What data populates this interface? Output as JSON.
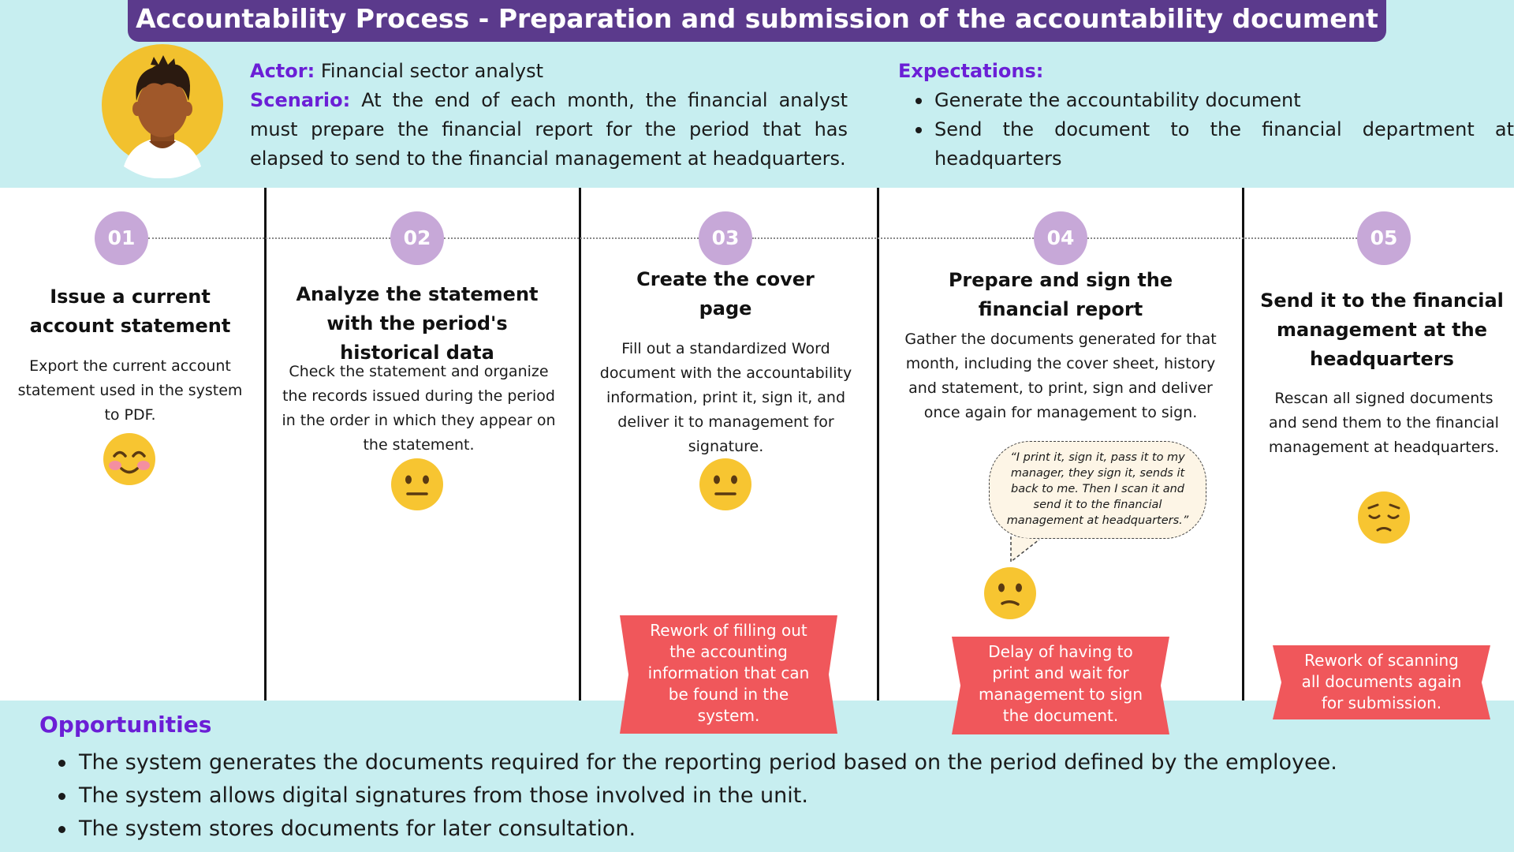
{
  "header": {
    "title": "Accountability Process - Preparation and submission of the accountability document"
  },
  "persona": {
    "actor_label": "Actor:",
    "actor": "Financial sector analyst",
    "scenario_label": "Scenario:",
    "scenario": "At the end of each month, the financial analyst must prepare the financial report for the period that has elapsed to send to the financial management at headquarters."
  },
  "expectations": {
    "label": "Expectations:",
    "items": [
      "Generate the accountability document",
      "Send the document to the financial department at headquarters"
    ]
  },
  "steps": [
    {
      "number": "01",
      "title": "Issue a current account statement",
      "description": "Export the current account statement used in the system to PDF.",
      "emotion": "happy-blushing-face-icon"
    },
    {
      "number": "02",
      "title": "Analyze the statement with the period's historical data",
      "description": "Check the statement and organize the records issued during the period in the order in which they appear on the statement.",
      "emotion": "neutral-face-icon"
    },
    {
      "number": "03",
      "title": "Create the cover page",
      "description": "Fill out a standardized Word document with the accountability information, print it, sign it, and deliver it to management for signature.",
      "emotion": "neutral-face-icon",
      "pain_point": "Rework of filling out the accounting information that can be found in the system."
    },
    {
      "number": "04",
      "title": "Prepare and sign the financial report",
      "description": "Gather the documents generated for that month, including the cover sheet, history and statement, to print, sign and deliver once again for management to sign.",
      "quote": "“I print it, sign it, pass it to my manager, they sign it, sends it back to me. Then I scan it and send it to the financial management at headquarters.”",
      "emotion": "confused-face-icon",
      "pain_point": "Delay of having to print and wait for management to sign the document."
    },
    {
      "number": "05",
      "title": "Send it to the financial management at the headquarters",
      "description": "Rescan all signed documents and send them to the financial management at headquarters.",
      "emotion": "pensive-face-icon",
      "pain_point": "Rework of scanning all documents again for submission."
    }
  ],
  "opportunities": {
    "title": "Opportunities",
    "items": [
      "The system generates the documents required for the reporting period based on the period defined by the employee.",
      "The system allows digital signatures from those involved in the unit.",
      "The system stores documents for later consultation."
    ]
  },
  "colors": {
    "band": "#c7eef0",
    "title_bar": "#5b3a8c",
    "accent_purple": "#6b1fd6",
    "badge": "#c7a8d8",
    "pain_point": "#f0575b",
    "emoji": "#f7c531"
  }
}
